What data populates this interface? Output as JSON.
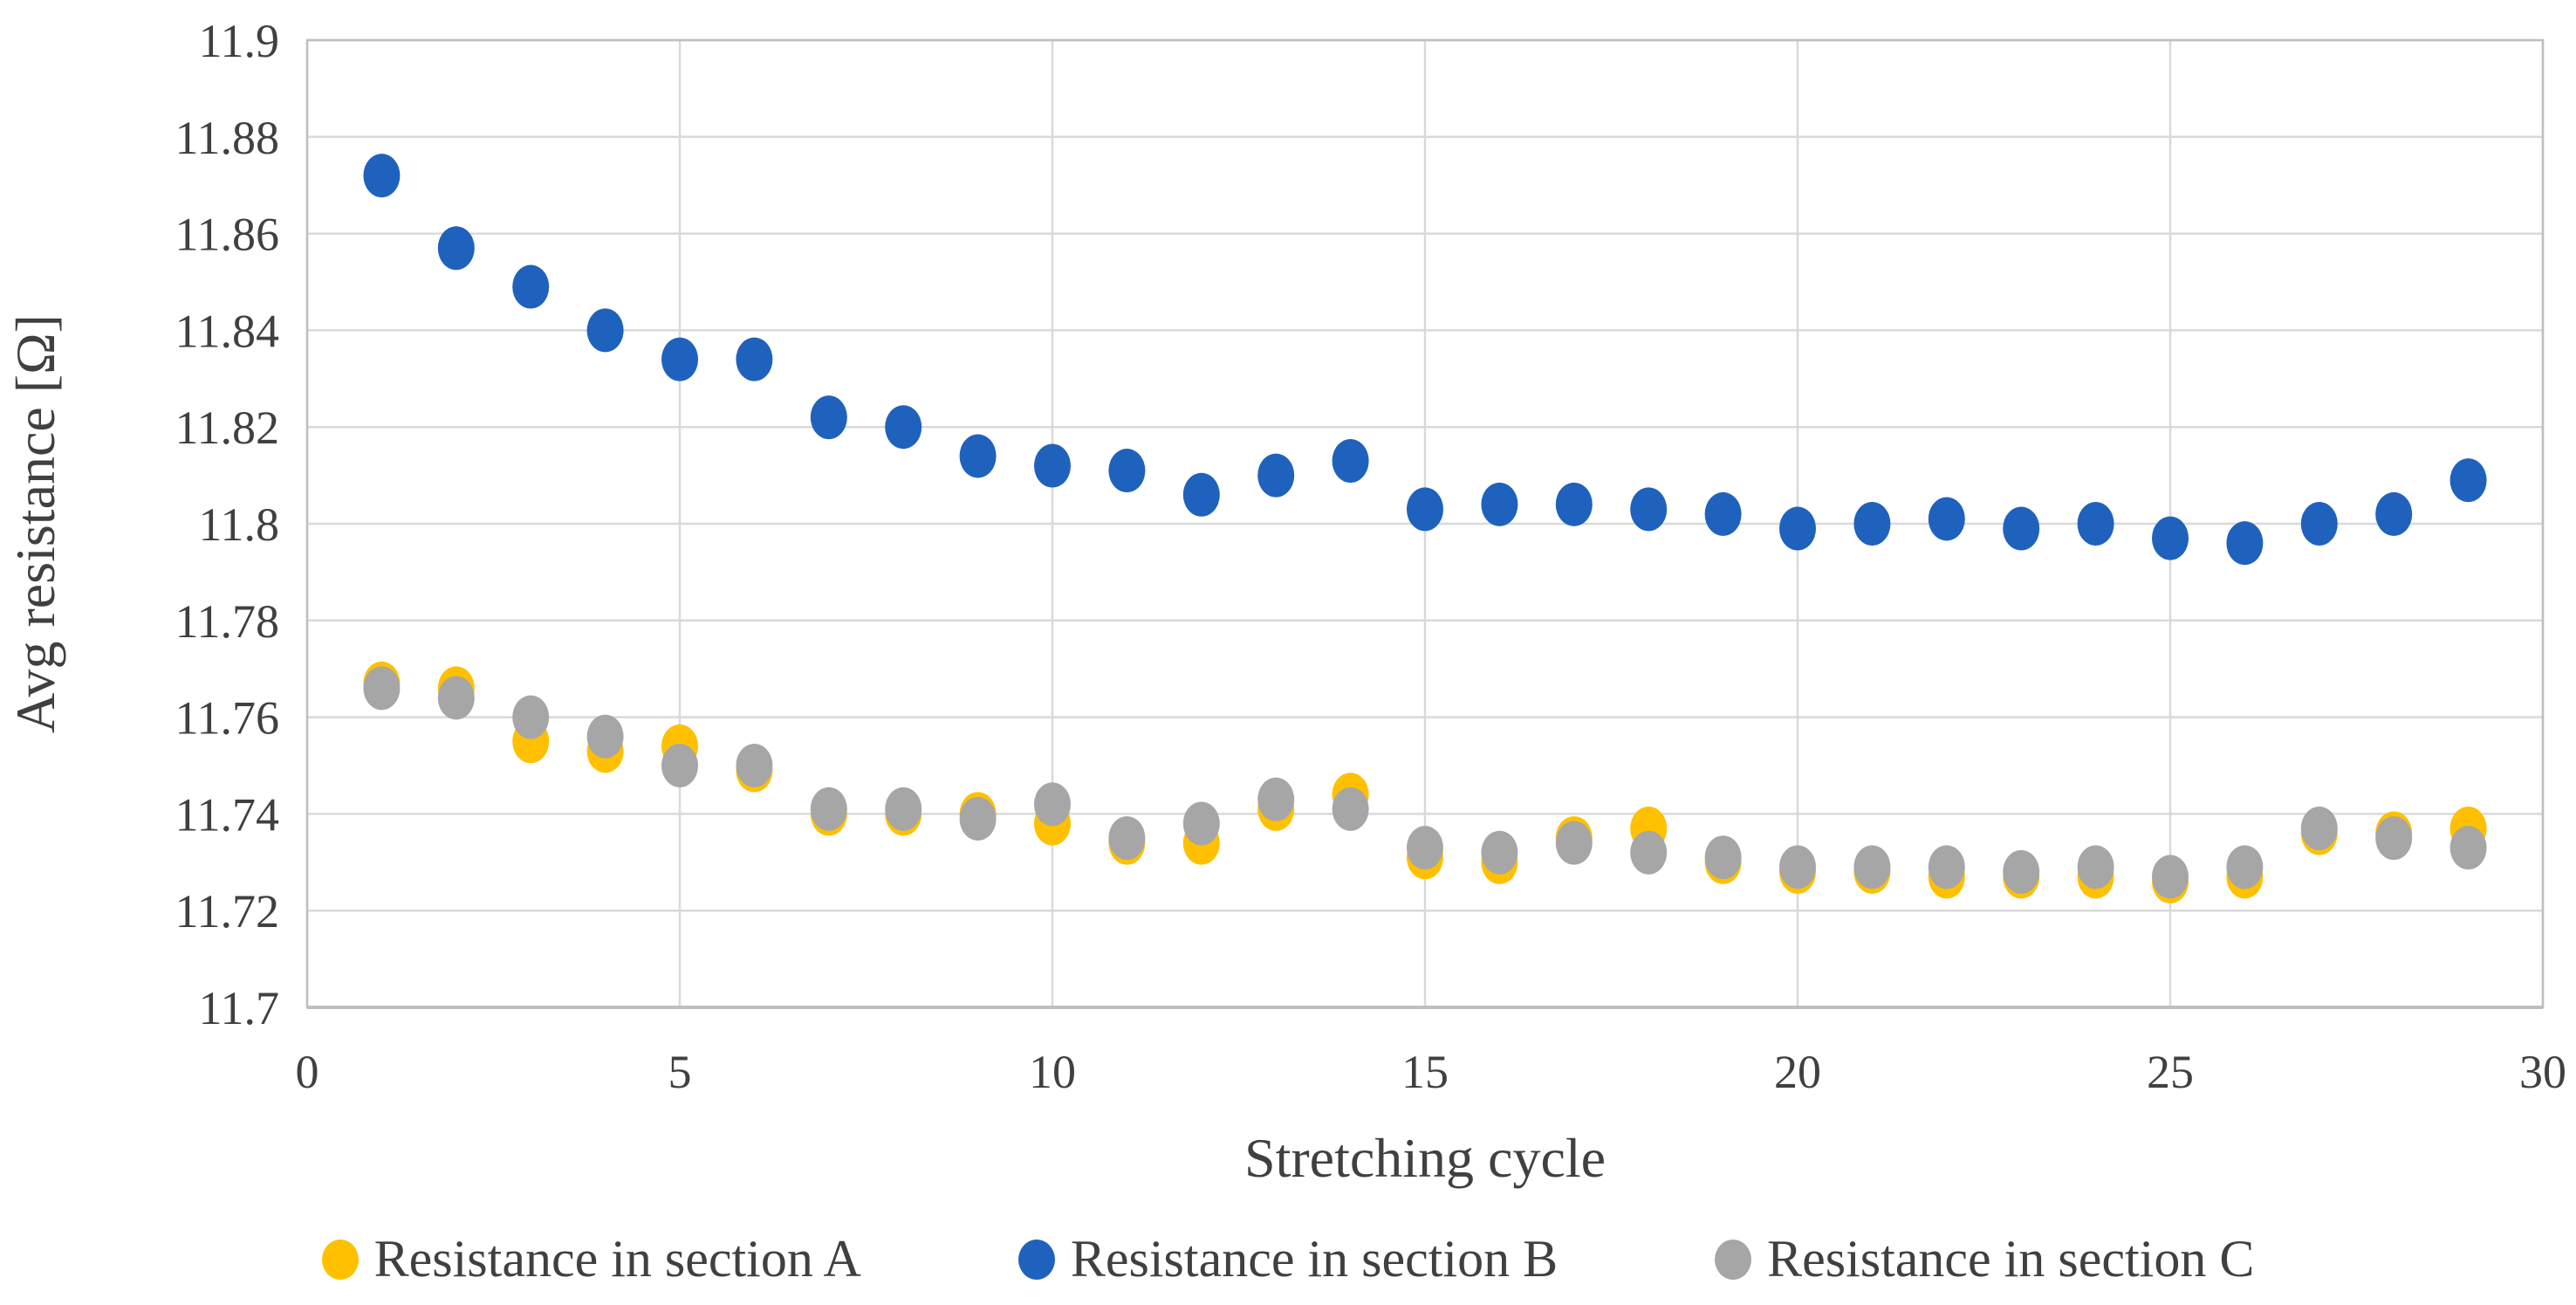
{
  "chart_data": {
    "type": "scatter",
    "title": "",
    "xlabel": "Stretching cycle",
    "ylabel": "Avg resistance [Ω]",
    "xlim": [
      0,
      30
    ],
    "ylim": [
      11.7,
      11.9
    ],
    "grid": true,
    "legend_position": "bottom",
    "x_ticks": {
      "values": [
        0,
        5,
        10,
        15,
        20,
        25,
        30
      ],
      "labels": [
        "0",
        "5",
        "10",
        "15",
        "20",
        "25",
        "30"
      ]
    },
    "y_ticks": {
      "values": [
        11.9,
        11.88,
        11.86,
        11.84,
        11.82,
        11.8,
        11.78,
        11.76,
        11.74,
        11.72,
        11.7
      ],
      "labels": [
        "11.9",
        "11.88",
        "11.86",
        "11.84",
        "11.82",
        "11.8",
        "11.78",
        "11.76",
        "11.74",
        "11.72",
        "11.7"
      ]
    },
    "x": [
      1,
      2,
      3,
      4,
      5,
      6,
      7,
      8,
      9,
      10,
      11,
      12,
      13,
      14,
      15,
      16,
      17,
      18,
      19,
      20,
      21,
      22,
      23,
      24,
      25,
      26,
      27,
      28,
      29
    ],
    "series": [
      {
        "name": "Resistance in section A",
        "color": "#FFC000",
        "values": [
          11.767,
          11.766,
          11.755,
          11.753,
          11.754,
          11.749,
          11.74,
          11.74,
          11.74,
          11.738,
          11.734,
          11.734,
          11.741,
          11.744,
          11.731,
          11.73,
          11.735,
          11.737,
          11.73,
          11.728,
          11.728,
          11.727,
          11.727,
          11.727,
          11.726,
          11.727,
          11.736,
          11.736,
          11.737
        ]
      },
      {
        "name": "Resistance in section B",
        "color": "#1F62BD",
        "values": [
          11.872,
          11.857,
          11.849,
          11.84,
          11.834,
          11.834,
          11.822,
          11.82,
          11.814,
          11.812,
          11.811,
          11.806,
          11.81,
          11.813,
          11.803,
          11.804,
          11.804,
          11.803,
          11.802,
          11.799,
          11.8,
          11.801,
          11.799,
          11.8,
          11.797,
          11.796,
          11.8,
          11.802,
          11.809
        ]
      },
      {
        "name": "Resistance in section C",
        "color": "#A6A6A6",
        "values": [
          11.766,
          11.764,
          11.76,
          11.756,
          11.75,
          11.75,
          11.741,
          11.741,
          11.739,
          11.742,
          11.735,
          11.738,
          11.743,
          11.741,
          11.733,
          11.732,
          11.734,
          11.732,
          11.731,
          11.729,
          11.729,
          11.729,
          11.728,
          11.729,
          11.727,
          11.729,
          11.737,
          11.735,
          11.733
        ]
      }
    ],
    "colors": {
      "gridline": "#D9D9D9",
      "plot_border": "#BFBFBF",
      "axis_line": "#BFBFBF",
      "text": "#404040"
    }
  }
}
